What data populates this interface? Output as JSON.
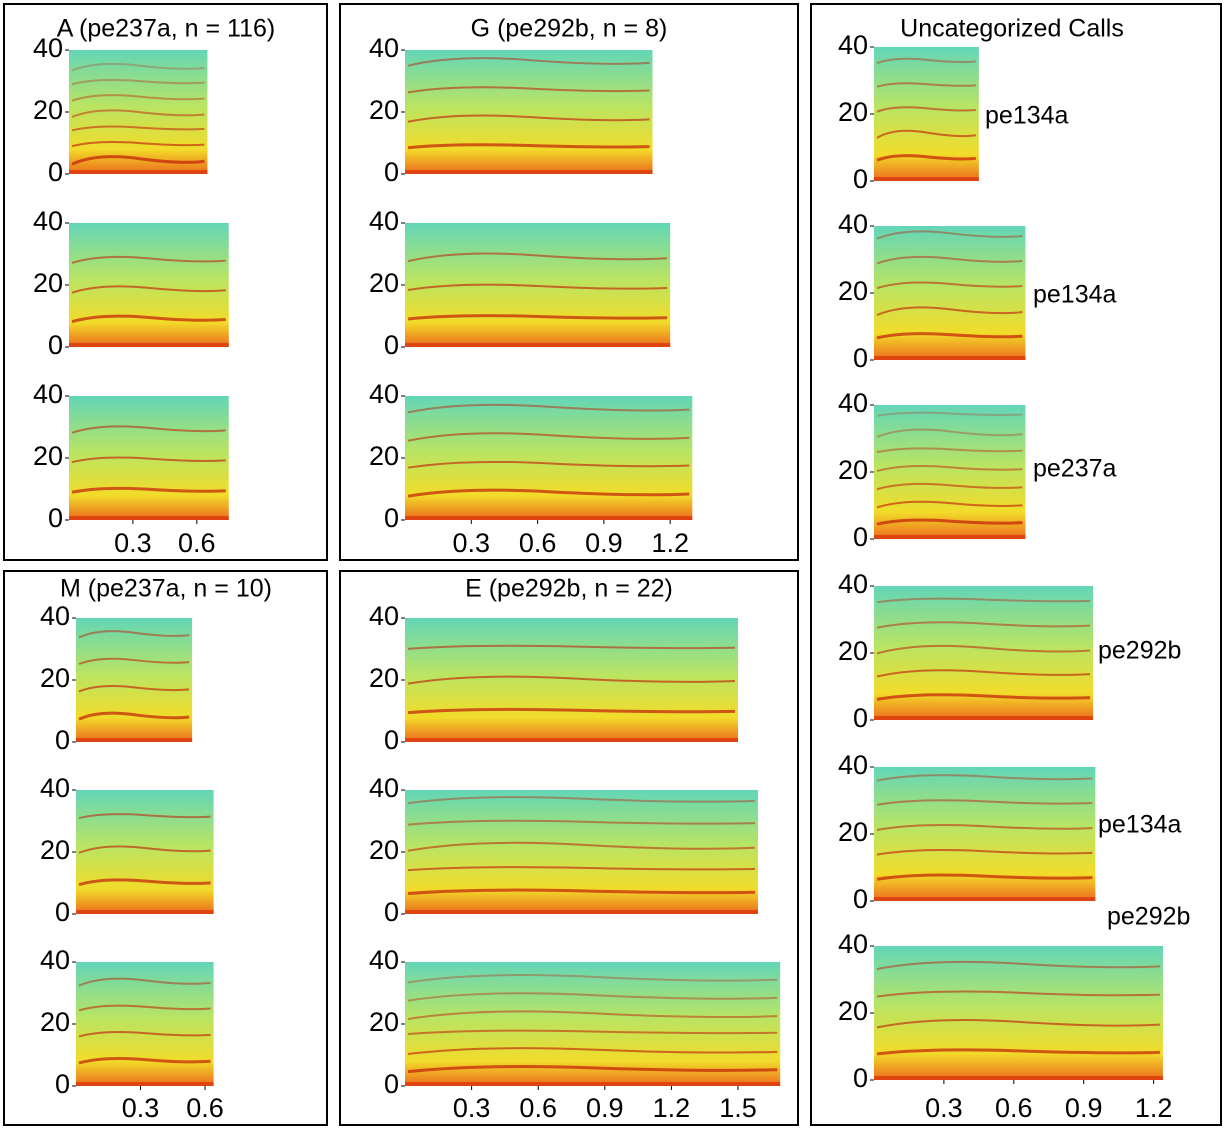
{
  "panels": [
    {
      "title": "A (pe237a, n = 116)",
      "xticks": [
        0.3,
        0.6
      ],
      "spectrograms": [
        {
          "xlim": [
            0,
            0.65
          ],
          "ylim": [
            0,
            40
          ],
          "yticks": [
            0,
            20,
            40
          ]
        },
        {
          "xlim": [
            0,
            0.75
          ],
          "ylim": [
            0,
            40
          ],
          "yticks": [
            0,
            20,
            40
          ]
        },
        {
          "xlim": [
            0,
            0.75
          ],
          "ylim": [
            0,
            40
          ],
          "yticks": [
            0,
            20,
            40
          ]
        }
      ]
    },
    {
      "title": "G (pe292b, n = 8)",
      "xticks": [
        0.3,
        0.6,
        0.9,
        1.2
      ],
      "spectrograms": [
        {
          "xlim": [
            0,
            1.12
          ],
          "ylim": [
            0,
            40
          ],
          "yticks": [
            0,
            20,
            40
          ]
        },
        {
          "xlim": [
            0,
            1.2
          ],
          "ylim": [
            0,
            40
          ],
          "yticks": [
            0,
            20,
            40
          ]
        },
        {
          "xlim": [
            0,
            1.3
          ],
          "ylim": [
            0,
            40
          ],
          "yticks": [
            0,
            20,
            40
          ]
        }
      ]
    },
    {
      "title": "Uncategorized Calls",
      "xticks": [
        0.3,
        0.6,
        0.9,
        1.2
      ],
      "spectrograms": [
        {
          "label": "pe134a",
          "xlim": [
            0,
            0.45
          ],
          "ylim": [
            0,
            40
          ],
          "yticks": [
            0,
            20,
            40
          ]
        },
        {
          "label": "pe134a",
          "xlim": [
            0,
            0.65
          ],
          "ylim": [
            0,
            40
          ],
          "yticks": [
            0,
            20,
            40
          ]
        },
        {
          "label": "pe237a",
          "xlim": [
            0,
            0.65
          ],
          "ylim": [
            0,
            40
          ],
          "yticks": [
            0,
            20,
            40
          ]
        },
        {
          "label": "pe292b",
          "xlim": [
            0,
            0.94
          ],
          "ylim": [
            0,
            40
          ],
          "yticks": [
            0,
            20,
            40
          ]
        },
        {
          "label": "pe134a",
          "xlim": [
            0,
            0.95
          ],
          "ylim": [
            0,
            40
          ],
          "yticks": [
            0,
            20,
            40
          ]
        },
        {
          "label": "pe292b",
          "xlim": [
            0,
            1.24
          ],
          "ylim": [
            0,
            40
          ],
          "yticks": [
            0,
            20,
            40
          ]
        }
      ]
    },
    {
      "title": "M (pe237a, n = 10)",
      "xticks": [
        0.3,
        0.6
      ],
      "spectrograms": [
        {
          "xlim": [
            0,
            0.54
          ],
          "ylim": [
            0,
            40
          ],
          "yticks": [
            0,
            20,
            40
          ]
        },
        {
          "xlim": [
            0,
            0.64
          ],
          "ylim": [
            0,
            40
          ],
          "yticks": [
            0,
            20,
            40
          ]
        },
        {
          "xlim": [
            0,
            0.64
          ],
          "ylim": [
            0,
            40
          ],
          "yticks": [
            0,
            20,
            40
          ]
        }
      ]
    },
    {
      "title": "E (pe292b, n = 22)",
      "xticks": [
        0.3,
        0.6,
        0.9,
        1.2,
        1.5
      ],
      "spectrograms": [
        {
          "xlim": [
            0,
            1.5
          ],
          "ylim": [
            0,
            40
          ],
          "yticks": [
            0,
            20,
            40
          ]
        },
        {
          "xlim": [
            0,
            1.59
          ],
          "ylim": [
            0,
            40
          ],
          "yticks": [
            0,
            20,
            40
          ]
        },
        {
          "xlim": [
            0,
            1.69
          ],
          "ylim": [
            0,
            40
          ],
          "yticks": [
            0,
            20,
            40
          ]
        }
      ]
    }
  ]
}
